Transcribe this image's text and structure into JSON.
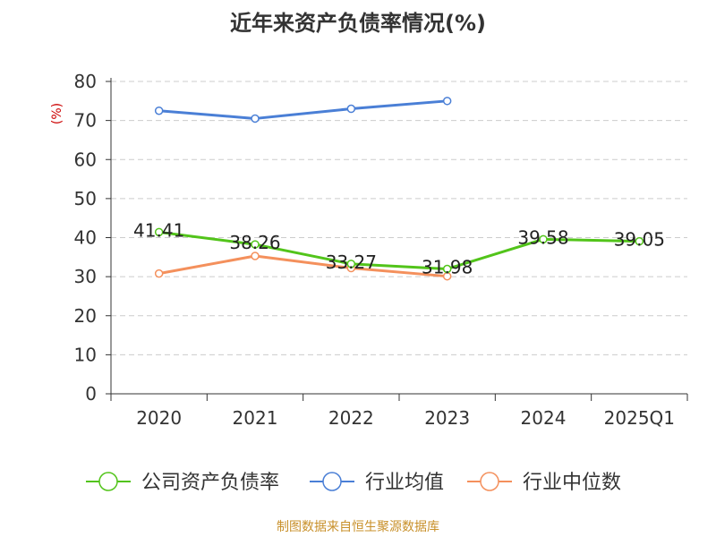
{
  "chart_data": {
    "type": "line",
    "title": "近年来资产负债率情况(%)",
    "ylabel": "(%)",
    "xlabel": "",
    "ylim": [
      0,
      80
    ],
    "yticks": [
      0,
      10,
      20,
      30,
      40,
      50,
      60,
      70,
      80
    ],
    "categories": [
      "2020",
      "2021",
      "2022",
      "2023",
      "2024",
      "2025Q1"
    ],
    "grid": "horizontal dashed",
    "legend_position": "bottom",
    "series": [
      {
        "name": "公司资产负债率",
        "color": "#52c41a",
        "values": [
          41.41,
          38.26,
          33.27,
          31.98,
          39.58,
          39.05
        ],
        "labels": [
          "41.41",
          "38.26",
          "33.27",
          "31.98",
          "39.58",
          "39.05"
        ]
      },
      {
        "name": "行业均值",
        "color": "#4a7fd6",
        "values": [
          72.5,
          70.5,
          73.0,
          75.0,
          null,
          null
        ]
      },
      {
        "name": "行业中位数",
        "color": "#f4905c",
        "values": [
          30.8,
          35.3,
          32.2,
          30.1,
          null,
          null
        ]
      }
    ]
  },
  "footer": {
    "source": "制图数据来自恒生聚源数据库"
  }
}
